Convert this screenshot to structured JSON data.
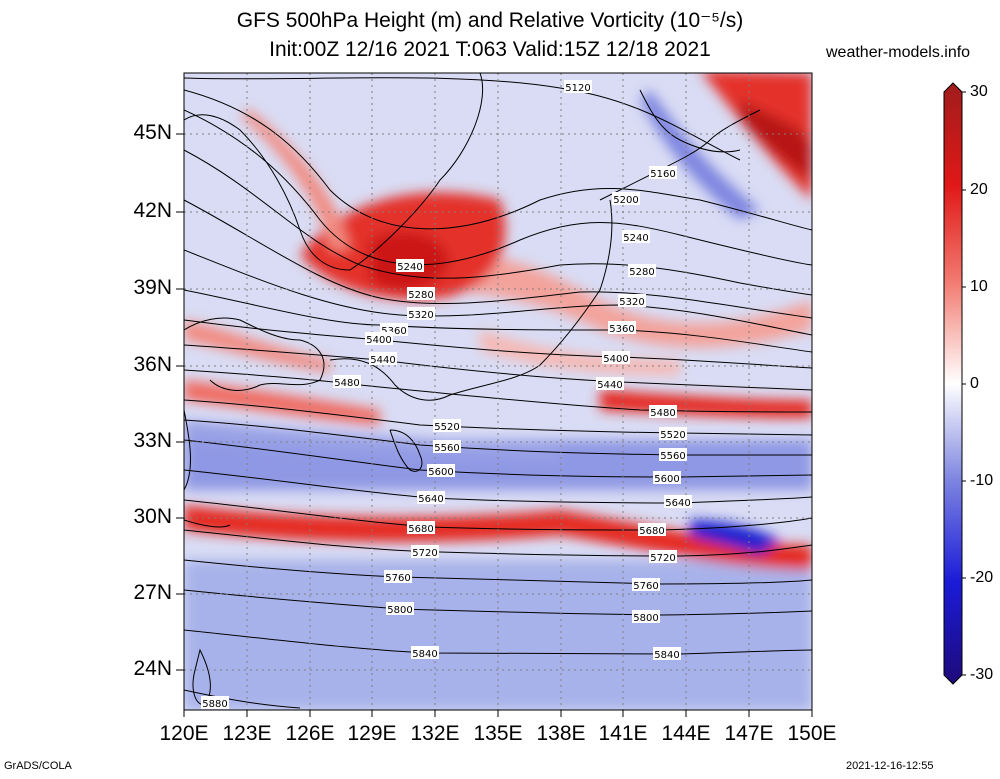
{
  "header": {
    "title_line1": "GFS 500hPa Height (m) and Relative Vorticity (10⁻⁵/s)",
    "title_line2": "Init:00Z 12/16 2021 T:063 Valid:15Z 12/18 2021",
    "site": "weather-models.info"
  },
  "axes": {
    "lat_labels": [
      "45N",
      "42N",
      "39N",
      "36N",
      "33N",
      "30N",
      "27N",
      "24N"
    ],
    "lon_labels": [
      "120E",
      "123E",
      "126E",
      "129E",
      "132E",
      "135E",
      "138E",
      "141E",
      "144E",
      "147E",
      "150E"
    ]
  },
  "colorbar": {
    "ticks": [
      "30",
      "20",
      "10",
      "0",
      "-10",
      "-20",
      "-30"
    ],
    "colors": [
      "#9a1a1a",
      "#e01818",
      "#f07a70",
      "#ffffff",
      "#7f84e0",
      "#1b1bd8",
      "#1c0a78"
    ]
  },
  "contour_labels": [
    "5120",
    "5160",
    "5200",
    "5240",
    "5280",
    "5320",
    "5360",
    "5400",
    "5440",
    "5480",
    "5520",
    "5560",
    "5600",
    "5640",
    "5680",
    "5720",
    "5760",
    "5800",
    "5840",
    "5880"
  ],
  "footer": {
    "left": "GrADS/COLA",
    "right": "2021-12-16-12:55"
  }
}
